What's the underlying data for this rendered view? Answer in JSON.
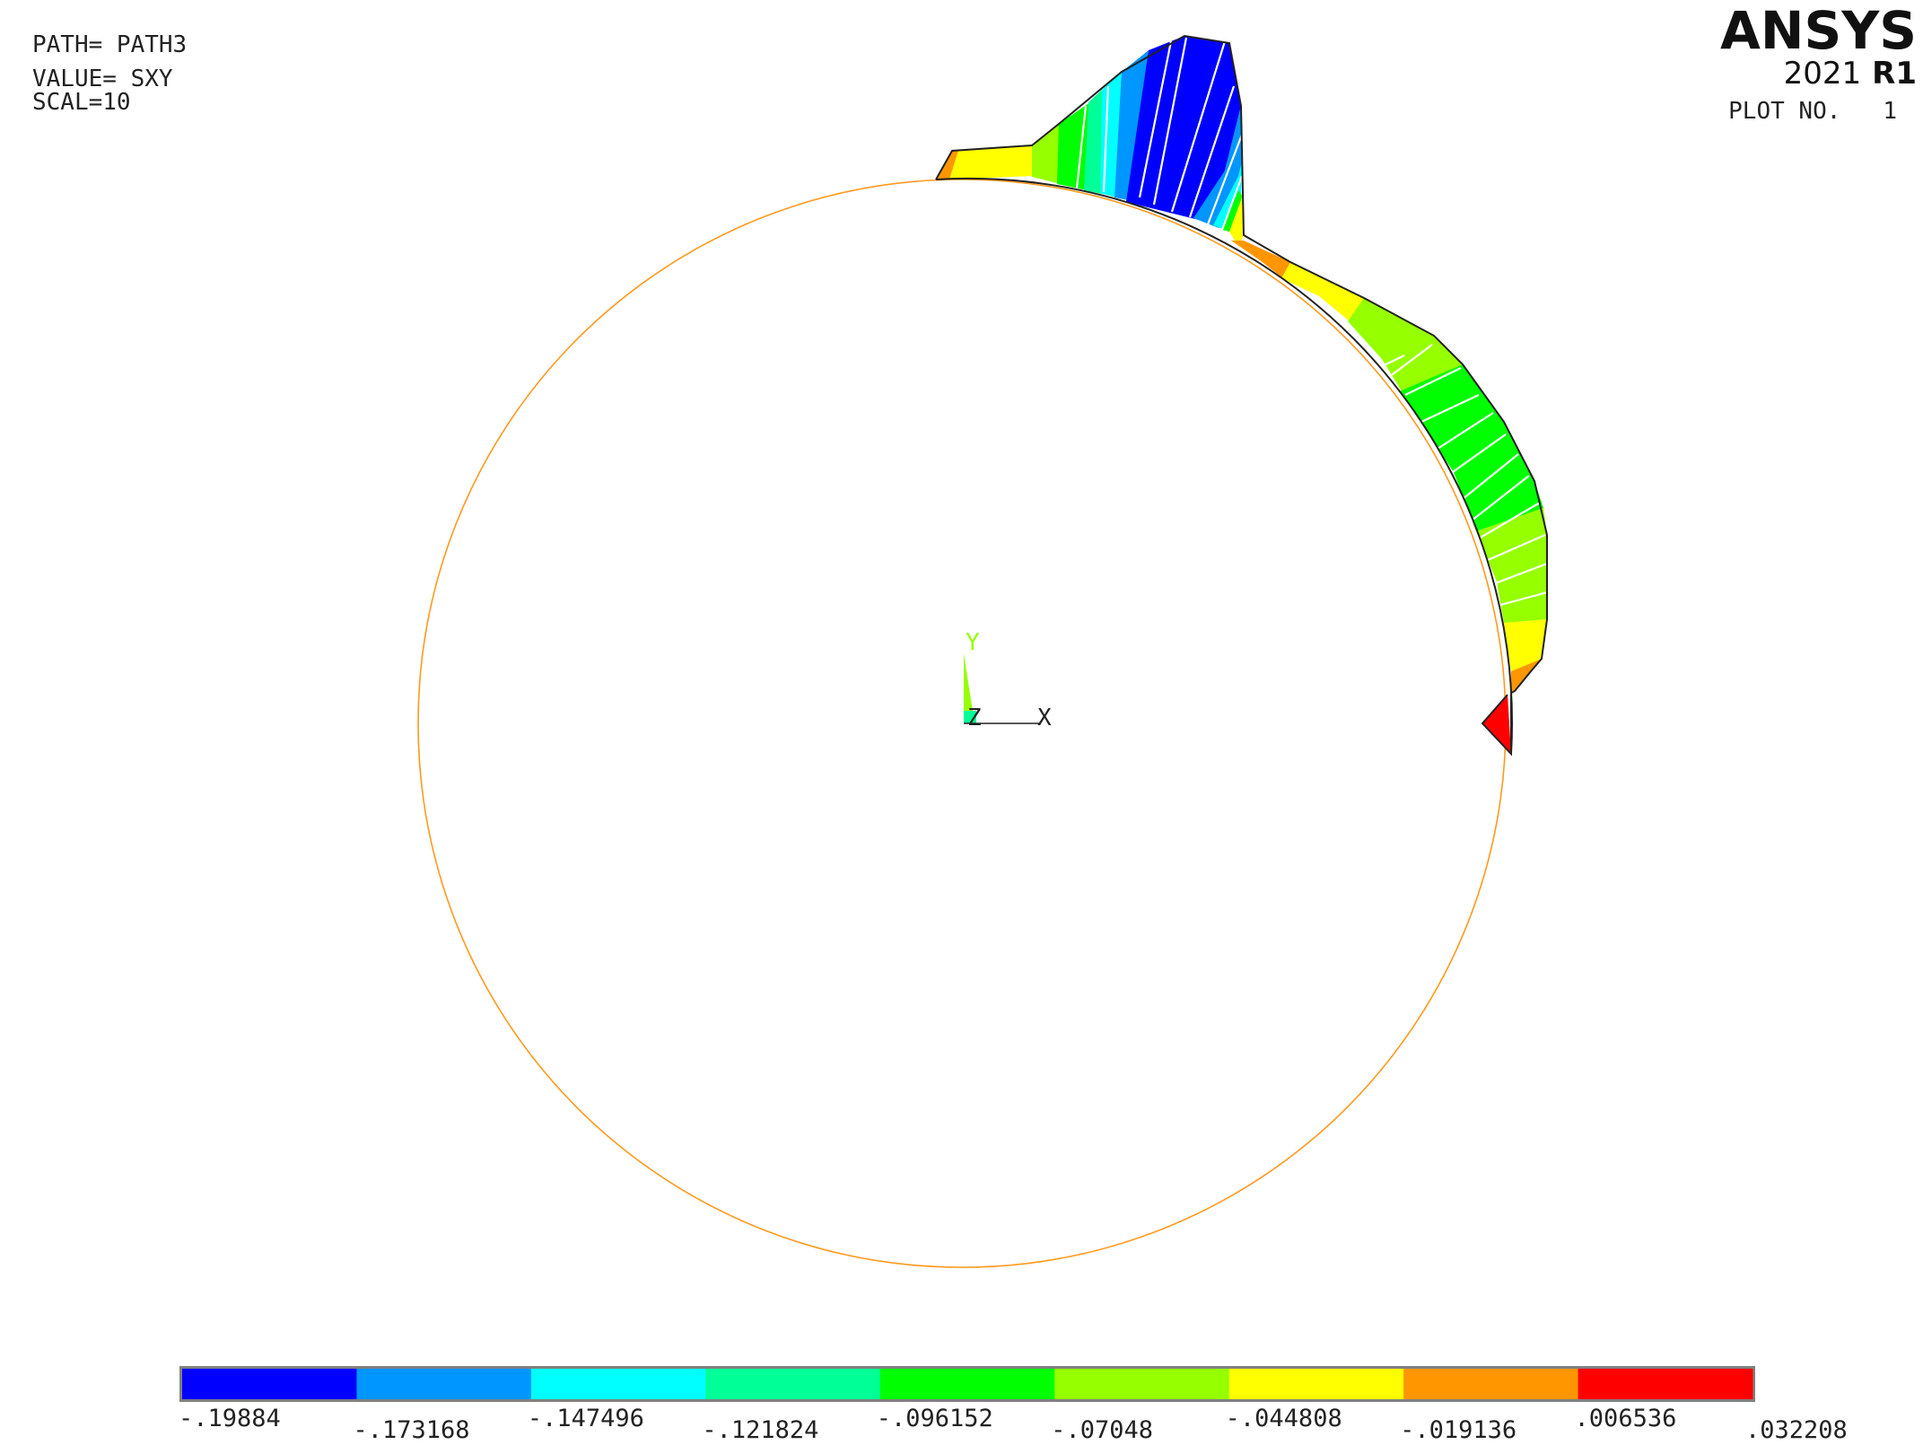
{
  "header": {
    "path_line": "PATH=  PATH3",
    "value_line": "VALUE= SXY",
    "scale_line": "SCAL=10"
  },
  "brand": {
    "name": "ANSYS",
    "version": "2021",
    "release": "R1",
    "plot_no": "PLOT NO.   1"
  },
  "triad": {
    "x": "X",
    "y": "Y",
    "z": "Z"
  },
  "legend": {
    "colors": [
      "#0000ff",
      "#0096ff",
      "#00ffff",
      "#00ff96",
      "#00ff00",
      "#96ff00",
      "#ffff00",
      "#ff9600",
      "#ff0000"
    ],
    "labels": [
      ".19884",
      ".173168",
      ".147496",
      ".121824",
      ".096152",
      ".07048",
      ".044808",
      ".019136",
      ".006536",
      ".032208"
    ],
    "signs": [
      "-",
      "-",
      "-",
      "-",
      "-",
      "-",
      "-",
      "-",
      "",
      ""
    ]
  },
  "colors": {
    "circle": "#ff9a1f",
    "separator": "#ffffff",
    "outline": "#222222",
    "triad_x": "#222222",
    "triad_y": "#96ff00",
    "triad_z": "#00ff96"
  }
}
